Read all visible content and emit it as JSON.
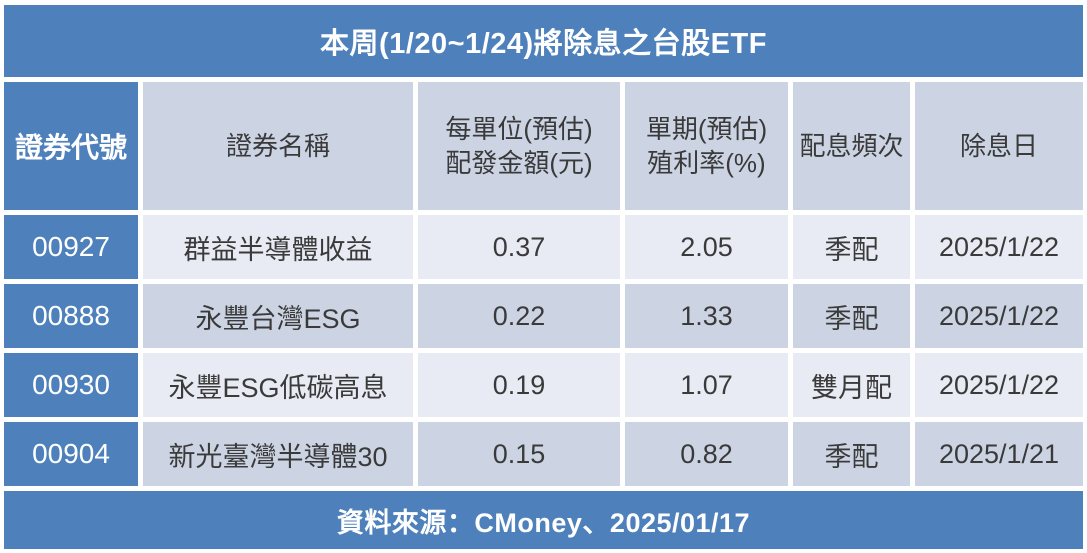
{
  "chart_data": {
    "type": "table",
    "title": "本周(1/20~1/24)將除息之台股ETF",
    "columns": [
      "證券代號",
      "證券名稱",
      "每單位(預估)配發金額(元)",
      "單期(預估)殖利率(%)",
      "配息頻次",
      "除息日"
    ],
    "rows": [
      [
        "00927",
        "群益半導體收益",
        0.37,
        2.05,
        "季配",
        "2025/1/22"
      ],
      [
        "00888",
        "永豐台灣ESG",
        0.22,
        1.33,
        "季配",
        "2025/1/22"
      ],
      [
        "00930",
        "永豐ESG低碳高息",
        0.19,
        1.07,
        "雙月配",
        "2025/1/22"
      ],
      [
        "00904",
        "新光臺灣半導體30",
        0.15,
        0.82,
        "季配",
        "2025/1/21"
      ]
    ],
    "source": "資料來源：CMoney、2025/01/17"
  },
  "display": {
    "headers": [
      "證券代號",
      "證券名稱",
      "每單位(預估)\n配發金額(元)",
      "單期(預估)\n殖利率(%)",
      "配息頻次",
      "除息日"
    ]
  },
  "colors": {
    "accent_blue": "#4e81bc",
    "band_dark": "#ccd4e4",
    "band_light": "#e8ebf3",
    "text_dark": "#3a3a3a",
    "text_on_blue": "#ffffff"
  }
}
